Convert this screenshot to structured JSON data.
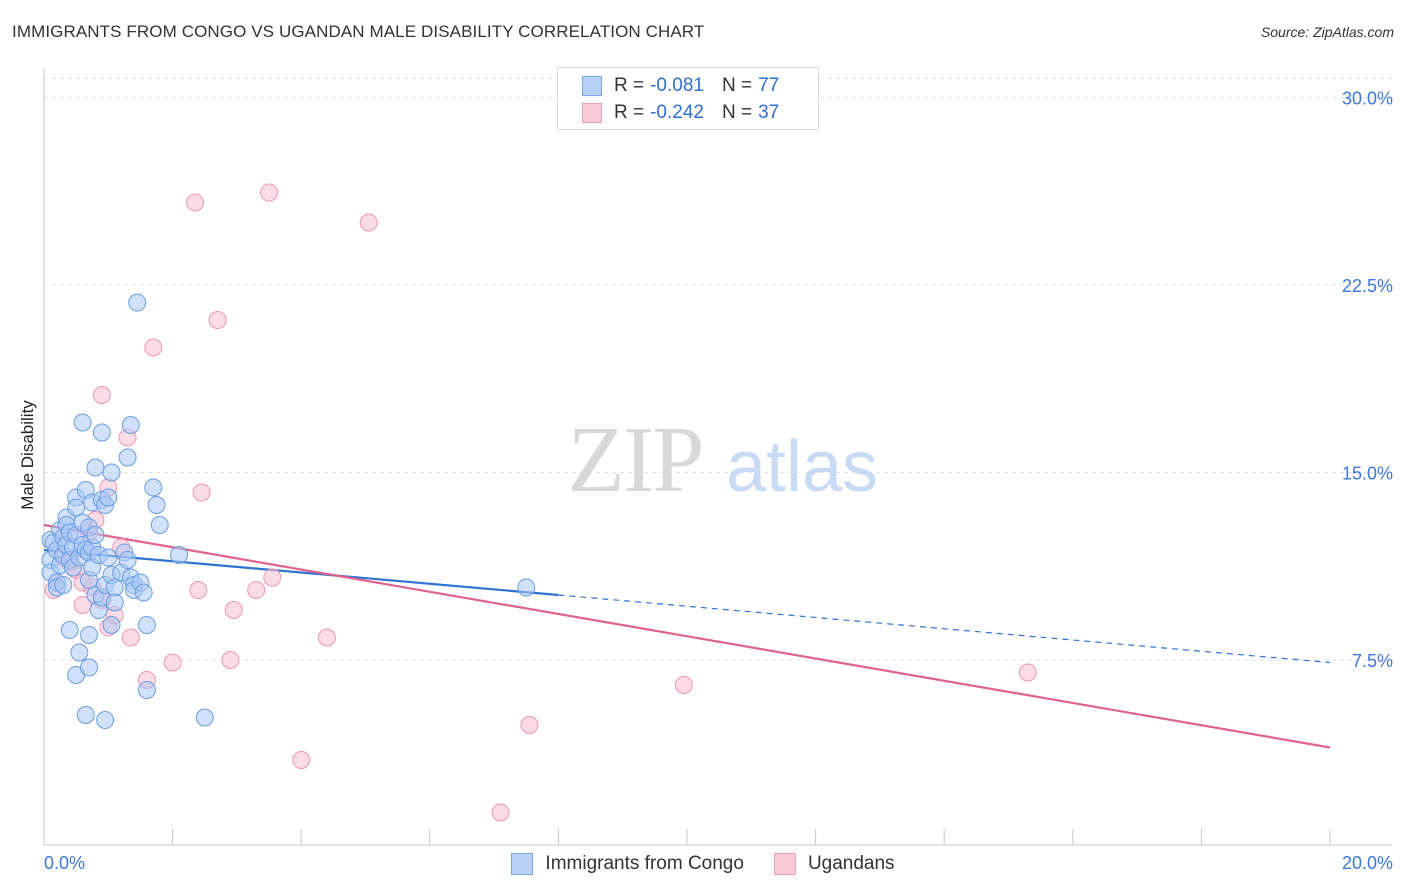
{
  "title": "IMMIGRANTS FROM CONGO VS UGANDAN MALE DISABILITY CORRELATION CHART",
  "source": "Source: ZipAtlas.com",
  "watermark": {
    "zip": "ZIP",
    "atlas": "atlas"
  },
  "legend_top": [
    {
      "r_label": "R =",
      "r_value": "-0.081",
      "n_label": "N =",
      "n_value": "77"
    },
    {
      "r_label": "R =",
      "r_value": "-0.242",
      "n_label": "N =",
      "n_value": "37"
    }
  ],
  "legend_bottom": [
    "Immigrants from Congo",
    "Ugandans"
  ],
  "colors": {
    "blue_fill": "#a9c8f4",
    "blue_stroke": "#6d9de0",
    "blue_line": "#2f74d0",
    "pink_fill": "#f7bdd0",
    "pink_stroke": "#eb97b5",
    "pink_line": "#e0628f",
    "tick_label": "#3c78d8",
    "grid": "#e2e2e2"
  },
  "chart_data": {
    "type": "scatter",
    "title": "IMMIGRANTS FROM CONGO VS UGANDAN MALE DISABILITY CORRELATION CHART",
    "xlabel": "",
    "ylabel": "Male Disability",
    "xlim": [
      0,
      20
    ],
    "ylim": [
      0,
      31
    ],
    "x_tick_labels": [
      "0.0%",
      "20.0%"
    ],
    "y_ticks": [
      7.5,
      15.0,
      22.5,
      30.0
    ],
    "y_tick_labels": [
      "7.5%",
      "15.0%",
      "22.5%",
      "30.0%"
    ],
    "grid": true,
    "series": [
      {
        "name": "Immigrants from Congo",
        "r": -0.081,
        "n": 77,
        "trend": {
          "x0": 0.0,
          "y0": 11.9,
          "x1": 8.0,
          "y1": 10.1,
          "x_dash_end": 20.0,
          "y_dash_end": 7.4
        },
        "points": [
          [
            0.1,
            12.3
          ],
          [
            0.1,
            11.5
          ],
          [
            0.1,
            11.0
          ],
          [
            0.15,
            12.2
          ],
          [
            0.2,
            11.9
          ],
          [
            0.2,
            10.6
          ],
          [
            0.2,
            10.4
          ],
          [
            0.25,
            12.7
          ],
          [
            0.25,
            11.3
          ],
          [
            0.3,
            12.4
          ],
          [
            0.3,
            11.7
          ],
          [
            0.3,
            10.5
          ],
          [
            0.35,
            13.2
          ],
          [
            0.35,
            12.9
          ],
          [
            0.35,
            12.1
          ],
          [
            0.4,
            12.6
          ],
          [
            0.4,
            11.5
          ],
          [
            0.4,
            8.7
          ],
          [
            0.45,
            12.0
          ],
          [
            0.45,
            11.2
          ],
          [
            0.5,
            14.0
          ],
          [
            0.5,
            13.6
          ],
          [
            0.5,
            12.5
          ],
          [
            0.5,
            6.9
          ],
          [
            0.55,
            11.6
          ],
          [
            0.55,
            7.8
          ],
          [
            0.6,
            17.0
          ],
          [
            0.6,
            13.0
          ],
          [
            0.6,
            12.1
          ],
          [
            0.65,
            14.3
          ],
          [
            0.65,
            11.9
          ],
          [
            0.65,
            5.3
          ],
          [
            0.7,
            12.8
          ],
          [
            0.7,
            11.8
          ],
          [
            0.7,
            10.7
          ],
          [
            0.7,
            8.5
          ],
          [
            0.7,
            7.2
          ],
          [
            0.75,
            13.8
          ],
          [
            0.75,
            12.0
          ],
          [
            0.75,
            11.2
          ],
          [
            0.8,
            15.2
          ],
          [
            0.8,
            12.5
          ],
          [
            0.8,
            10.1
          ],
          [
            0.85,
            11.7
          ],
          [
            0.85,
            9.5
          ],
          [
            0.9,
            16.6
          ],
          [
            0.9,
            13.9
          ],
          [
            0.9,
            10.0
          ],
          [
            0.95,
            13.7
          ],
          [
            0.95,
            10.5
          ],
          [
            0.95,
            5.1
          ],
          [
            1.0,
            14.0
          ],
          [
            1.0,
            11.6
          ],
          [
            1.05,
            15.0
          ],
          [
            1.05,
            10.9
          ],
          [
            1.05,
            8.9
          ],
          [
            1.1,
            10.4
          ],
          [
            1.1,
            9.8
          ],
          [
            1.2,
            11.0
          ],
          [
            1.25,
            11.8
          ],
          [
            1.3,
            15.6
          ],
          [
            1.3,
            11.5
          ],
          [
            1.35,
            16.9
          ],
          [
            1.35,
            10.8
          ],
          [
            1.4,
            10.5
          ],
          [
            1.4,
            10.3
          ],
          [
            1.45,
            21.8
          ],
          [
            1.5,
            10.6
          ],
          [
            1.55,
            10.2
          ],
          [
            1.6,
            8.9
          ],
          [
            1.6,
            6.3
          ],
          [
            1.7,
            14.4
          ],
          [
            1.75,
            13.7
          ],
          [
            1.8,
            12.9
          ],
          [
            2.1,
            11.7
          ],
          [
            2.5,
            5.2
          ],
          [
            7.5,
            10.4
          ]
        ]
      },
      {
        "name": "Ugandans",
        "r": -0.242,
        "n": 37,
        "trend": {
          "x0": 0.0,
          "y0": 12.9,
          "x1": 20.0,
          "y1": 4.0
        },
        "points": [
          [
            0.2,
            10.6
          ],
          [
            0.3,
            11.6
          ],
          [
            0.4,
            11.4
          ],
          [
            0.5,
            11.1
          ],
          [
            0.6,
            10.6
          ],
          [
            0.6,
            9.7
          ],
          [
            0.7,
            12.6
          ],
          [
            0.75,
            10.4
          ],
          [
            0.8,
            13.1
          ],
          [
            0.9,
            9.9
          ],
          [
            0.9,
            18.1
          ],
          [
            1.0,
            14.4
          ],
          [
            1.0,
            8.8
          ],
          [
            1.1,
            9.3
          ],
          [
            1.2,
            12.0
          ],
          [
            1.3,
            16.4
          ],
          [
            1.35,
            8.4
          ],
          [
            1.6,
            6.7
          ],
          [
            1.7,
            20.0
          ],
          [
            2.0,
            7.4
          ],
          [
            2.35,
            25.8
          ],
          [
            2.4,
            10.3
          ],
          [
            2.45,
            14.2
          ],
          [
            2.7,
            21.1
          ],
          [
            2.9,
            7.5
          ],
          [
            2.95,
            9.5
          ],
          [
            3.3,
            10.3
          ],
          [
            3.5,
            26.2
          ],
          [
            3.55,
            10.8
          ],
          [
            4.0,
            3.5
          ],
          [
            4.4,
            8.4
          ],
          [
            5.05,
            25.0
          ],
          [
            7.1,
            1.4
          ],
          [
            7.55,
            4.9
          ],
          [
            9.95,
            6.5
          ],
          [
            15.3,
            7.0
          ],
          [
            0.15,
            10.3
          ]
        ]
      }
    ]
  }
}
